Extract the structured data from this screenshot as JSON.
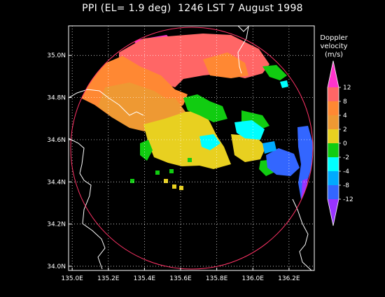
{
  "figure": {
    "title": "PPI (EL= 1.9 deg)  1246 LST 7 August 1998"
  },
  "map": {
    "lon_range": [
      134.98,
      136.34
    ],
    "lat_range": [
      33.98,
      35.14
    ],
    "lon_ticks": [
      {
        "value": 135.0,
        "label": "135.0E"
      },
      {
        "value": 135.2,
        "label": "135.2E"
      },
      {
        "value": 135.4,
        "label": "135.4E"
      },
      {
        "value": 135.6,
        "label": "135.6E"
      },
      {
        "value": 135.8,
        "label": "135.8E"
      },
      {
        "value": 136.0,
        "label": "136.0E"
      },
      {
        "value": 136.2,
        "label": "136.2E"
      }
    ],
    "lat_ticks": [
      {
        "value": 34.0,
        "label": "34.0N"
      },
      {
        "value": 34.2,
        "label": "34.2N"
      },
      {
        "value": 34.4,
        "label": "34.4N"
      },
      {
        "value": 34.6,
        "label": "34.6N"
      },
      {
        "value": 34.8,
        "label": "34.8N"
      },
      {
        "value": 35.0,
        "label": "35.0N"
      }
    ],
    "grid": true,
    "range_ring_color": "#ff3366"
  },
  "legend": {
    "title_lines": [
      "Doppler",
      "velocity",
      "(m/s)"
    ],
    "bins": [
      {
        "color": "#ff33cc"
      },
      {
        "color": "#ff6666"
      },
      {
        "color": "#ff8833"
      },
      {
        "color": "#ee9933"
      },
      {
        "color": "#e8d020"
      },
      {
        "color": "#11cc11"
      },
      {
        "color": "#00ffff"
      },
      {
        "color": "#00aaff"
      },
      {
        "color": "#3366ff"
      },
      {
        "color": "#9933ff"
      }
    ],
    "labels": [
      "12",
      "8",
      "4",
      "2",
      "0",
      "-2",
      "-4",
      "-8",
      "-12"
    ]
  }
}
